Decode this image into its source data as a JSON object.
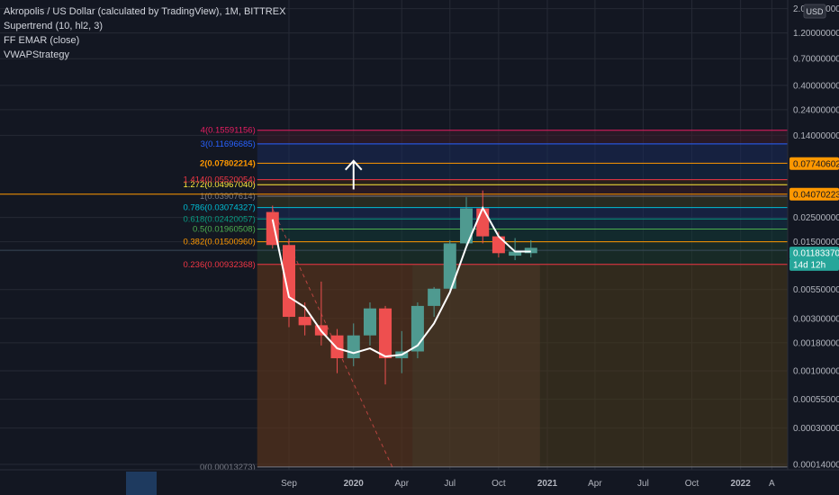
{
  "legend": {
    "title": "Akropolis / US Dollar (calculated by TradingView), 1M, BITTREX",
    "indicators": [
      "Supertrend (10, hl2, 3)",
      "FF EMAR (close)",
      "VWAPStrategy"
    ]
  },
  "currency_label": "USD",
  "colors": {
    "background": "#131722",
    "up": "#4f9a90",
    "down": "#ee4f4f",
    "supertrend_up": "#26a69a",
    "supertrend_down": "#801922",
    "ema": "#ffffff",
    "grid": "#262a35",
    "text": "#b2b5be"
  },
  "chart_data": {
    "type": "candlestick",
    "y_scale": "log",
    "ylim": [
      0.000125,
      2.4
    ],
    "yticks": [
      {
        "value": 2.0,
        "label": "2.00000000"
      },
      {
        "value": 1.2,
        "label": "1.20000000"
      },
      {
        "value": 0.7,
        "label": "0.70000000"
      },
      {
        "value": 0.4,
        "label": "0.40000000"
      },
      {
        "value": 0.24,
        "label": "0.24000000"
      },
      {
        "value": 0.14,
        "label": "0.14000000"
      },
      {
        "value": 0.025,
        "label": "0.02500000"
      },
      {
        "value": 0.015,
        "label": "0.01500000"
      },
      {
        "value": 0.0055,
        "label": "0.00550000"
      },
      {
        "value": 0.003,
        "label": "0.00300000"
      },
      {
        "value": 0.0018,
        "label": "0.00180000"
      },
      {
        "value": 0.001,
        "label": "0.00100000"
      },
      {
        "value": 0.00055,
        "label": "0.00055000"
      },
      {
        "value": 0.0003,
        "label": "0.00030000"
      },
      {
        "value": 0.00014,
        "label": "0.00014000"
      }
    ],
    "xlabels": [
      {
        "label": "Sep",
        "date": "2019-09-01",
        "bold": false
      },
      {
        "label": "2020",
        "date": "2020-01-01",
        "bold": true
      },
      {
        "label": "Apr",
        "date": "2020-04-01",
        "bold": false
      },
      {
        "label": "Jul",
        "date": "2020-07-01",
        "bold": false
      },
      {
        "label": "Oct",
        "date": "2020-10-01",
        "bold": false
      },
      {
        "label": "2021",
        "date": "2021-01-01",
        "bold": true
      },
      {
        "label": "Apr",
        "date": "2021-04-01",
        "bold": false
      },
      {
        "label": "Jul",
        "date": "2021-07-01",
        "bold": false
      },
      {
        "label": "Oct",
        "date": "2021-10-01",
        "bold": false
      },
      {
        "label": "2022",
        "date": "2022-01-01",
        "bold": true
      },
      {
        "label": "A",
        "date": "2022-03-01",
        "bold": false
      }
    ],
    "candles": [
      {
        "date": "2019-08-01",
        "open": 0.028,
        "high": 0.032,
        "low": 0.013,
        "close": 0.014
      },
      {
        "date": "2019-09-01",
        "open": 0.014,
        "high": 0.016,
        "low": 0.0025,
        "close": 0.0031
      },
      {
        "date": "2019-10-01",
        "open": 0.0031,
        "high": 0.0042,
        "low": 0.0021,
        "close": 0.0026
      },
      {
        "date": "2019-11-01",
        "open": 0.0026,
        "high": 0.0065,
        "low": 0.0017,
        "close": 0.0021
      },
      {
        "date": "2019-12-01",
        "open": 0.0021,
        "high": 0.0024,
        "low": 0.00095,
        "close": 0.0013
      },
      {
        "date": "2020-01-01",
        "open": 0.0013,
        "high": 0.0027,
        "low": 0.0011,
        "close": 0.0021
      },
      {
        "date": "2020-02-01",
        "open": 0.0021,
        "high": 0.0042,
        "low": 0.0017,
        "close": 0.0037
      },
      {
        "date": "2020-03-01",
        "open": 0.0037,
        "high": 0.0039,
        "low": 0.00075,
        "close": 0.0013
      },
      {
        "date": "2020-04-01",
        "open": 0.0013,
        "high": 0.0023,
        "low": 0.00095,
        "close": 0.0015
      },
      {
        "date": "2020-05-01",
        "open": 0.0015,
        "high": 0.0042,
        "low": 0.0013,
        "close": 0.0039
      },
      {
        "date": "2020-06-01",
        "open": 0.0039,
        "high": 0.0058,
        "low": 0.0031,
        "close": 0.0056
      },
      {
        "date": "2020-07-01",
        "open": 0.0056,
        "high": 0.0155,
        "low": 0.005,
        "close": 0.0145
      },
      {
        "date": "2020-08-01",
        "open": 0.0145,
        "high": 0.0382,
        "low": 0.013,
        "close": 0.0302
      },
      {
        "date": "2020-09-01",
        "open": 0.0302,
        "high": 0.044,
        "low": 0.0145,
        "close": 0.0168
      },
      {
        "date": "2020-10-01",
        "open": 0.0168,
        "high": 0.0185,
        "low": 0.0108,
        "close": 0.0118
      },
      {
        "date": "2020-11-01",
        "open": 0.0112,
        "high": 0.0162,
        "low": 0.0102,
        "close": 0.0122
      },
      {
        "date": "2020-12-01",
        "open": 0.0118,
        "high": 0.0155,
        "low": 0.0108,
        "close": 0.0132
      }
    ],
    "ema_line": [
      {
        "date": "2019-08-01",
        "value": 0.024
      },
      {
        "date": "2019-09-01",
        "value": 0.0047
      },
      {
        "date": "2019-10-01",
        "value": 0.0038
      },
      {
        "date": "2019-11-01",
        "value": 0.0023
      },
      {
        "date": "2019-12-01",
        "value": 0.0016
      },
      {
        "date": "2020-01-01",
        "value": 0.00145
      },
      {
        "date": "2020-02-01",
        "value": 0.0016
      },
      {
        "date": "2020-03-01",
        "value": 0.00135
      },
      {
        "date": "2020-04-01",
        "value": 0.0014
      },
      {
        "date": "2020-05-01",
        "value": 0.0017
      },
      {
        "date": "2020-06-01",
        "value": 0.0027
      },
      {
        "date": "2020-07-01",
        "value": 0.0052
      },
      {
        "date": "2020-08-01",
        "value": 0.0135
      },
      {
        "date": "2020-09-01",
        "value": 0.0305
      },
      {
        "date": "2020-10-01",
        "value": 0.0168
      },
      {
        "date": "2020-11-01",
        "value": 0.0122
      },
      {
        "date": "2020-12-01",
        "value": 0.0122
      }
    ],
    "fibonacci": {
      "start_date": "2019-08-01",
      "levels": [
        {
          "label": "0(0.00013273)",
          "value": 0.00013273,
          "color": "#787b86"
        },
        {
          "label": "0.236(0.00932368)",
          "value": 0.00932368,
          "color": "#f23645"
        },
        {
          "label": "0.382(0.01500960)",
          "value": 0.0150096,
          "color": "#ff9800"
        },
        {
          "label": "0.5(0.01960508)",
          "value": 0.01960508,
          "color": "#4caf50"
        },
        {
          "label": "0.618(0.02420057)",
          "value": 0.02420057,
          "color": "#089981"
        },
        {
          "label": "0.786(0.03074327)",
          "value": 0.03074327,
          "color": "#00bcd4"
        },
        {
          "label": "1(0.03907614)",
          "value": 0.03907614,
          "color": "#787b86"
        },
        {
          "label": "1.272(0.04967040)",
          "value": 0.0496704,
          "color": "#ffeb3b"
        },
        {
          "label": "1.414(0.05520054)",
          "value": 0.05520054,
          "color": "#f23645"
        },
        {
          "label": "2(0.07802214)",
          "value": 0.07802214,
          "color": "#ff9800"
        },
        {
          "label": "3(0.11696685)",
          "value": 0.11696685,
          "color": "#2962ff"
        },
        {
          "label": "4(0.15591156)",
          "value": 0.15591156,
          "color": "#e91e63"
        }
      ]
    },
    "price_tags": [
      {
        "label": "0.07740602",
        "value": 0.07740602,
        "bg": "#ff9800",
        "fg": "#131722"
      },
      {
        "label": "0.04070223",
        "value": 0.04070223,
        "bg": "#ff9800",
        "fg": "#131722"
      },
      {
        "label": "0.01183370",
        "value": 0.0118337,
        "bg": "#26a69a",
        "fg": "#ffffff"
      },
      {
        "label": "14d 12h",
        "value": 0.0093,
        "bg": "#26a69a",
        "fg": "#ffffff"
      }
    ],
    "arrow": {
      "date": "2020-01-01",
      "from": 0.045,
      "to": 0.082
    }
  }
}
